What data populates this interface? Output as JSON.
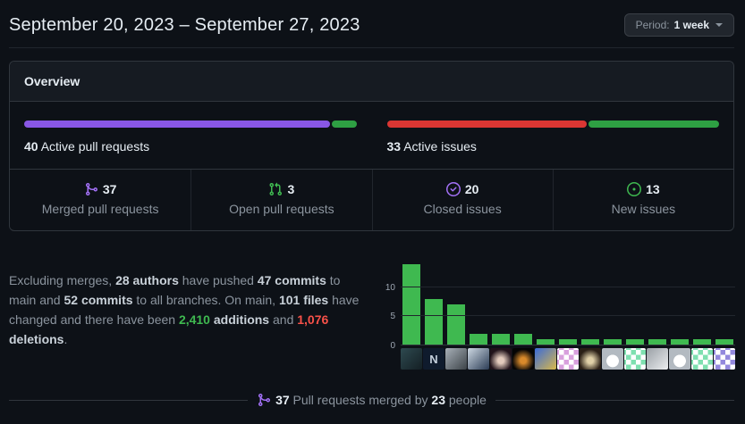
{
  "header": {
    "title": "September 20, 2023 – September 27, 2023",
    "period_label": "Period:",
    "period_value": "1 week"
  },
  "overview": {
    "title": "Overview",
    "pull_requests": {
      "count": "40",
      "label": "Active pull requests",
      "segments": [
        {
          "name": "merged",
          "pct": 92.5,
          "color": "#8957e5"
        },
        {
          "name": "open",
          "pct": 7.5,
          "color": "#2ea043"
        }
      ]
    },
    "issues": {
      "count": "33",
      "label": "Active issues",
      "segments": [
        {
          "name": "closed",
          "pct": 60.6,
          "color": "#da3633"
        },
        {
          "name": "new",
          "pct": 39.4,
          "color": "#2ea043"
        }
      ]
    },
    "stats": [
      {
        "value": "37",
        "label": "Merged pull requests"
      },
      {
        "value": "3",
        "label": "Open pull requests"
      },
      {
        "value": "20",
        "label": "Closed issues"
      },
      {
        "value": "13",
        "label": "New issues"
      }
    ]
  },
  "summary": {
    "s0": "Excluding merges, ",
    "authors": "28 authors",
    "s1": " have pushed ",
    "commits_main": "47 commits",
    "s2": " to main and ",
    "commits_all": "52 commits",
    "s3": " to all branches. On main, ",
    "files": "101 files",
    "s4": " have changed and there have been ",
    "additions_value": "2,410",
    "additions_label": " additions",
    "s5": " and ",
    "deletions_value": "1,076",
    "deletions_label": " deletions",
    "s6": "."
  },
  "chart_data": {
    "type": "bar",
    "values": [
      14,
      8,
      7,
      2,
      2,
      2,
      1,
      1,
      1,
      1,
      1,
      1,
      1,
      1,
      1
    ],
    "categories": [
      "author-1",
      "author-2",
      "author-3",
      "author-4",
      "author-5",
      "author-6",
      "author-7",
      "author-8",
      "author-9",
      "author-10",
      "author-11",
      "author-12",
      "author-13",
      "author-14",
      "author-15"
    ],
    "yticks": [
      0,
      5,
      10
    ],
    "ylim": [
      0,
      15
    ],
    "bar_color": "#3fb950",
    "grid": true,
    "legend": "none",
    "avatars": [
      {
        "type": "gradient",
        "colors": [
          "#2e4a50",
          "#141f24"
        ]
      },
      {
        "type": "letter",
        "colors": [
          "#0f1b2d",
          "#c3cedb"
        ],
        "char": "N"
      },
      {
        "type": "gradient",
        "colors": [
          "#a8b0b8",
          "#3c4348"
        ]
      },
      {
        "type": "gradient",
        "colors": [
          "#cdd8e2",
          "#2b3c55"
        ]
      },
      {
        "type": "radial",
        "colors": [
          "#e3cbbd",
          "#20121a"
        ]
      },
      {
        "type": "radial",
        "colors": [
          "#d98a2b",
          "#050505"
        ]
      },
      {
        "type": "gradient",
        "colors": [
          "#3a6bd9",
          "#d9b84a"
        ]
      },
      {
        "type": "identicon",
        "colors": [
          "#d8a0dd"
        ]
      },
      {
        "type": "radial",
        "colors": [
          "#e0d0a8",
          "#2a1f16"
        ]
      },
      {
        "type": "octocat",
        "colors": [
          "#b3bac1"
        ]
      },
      {
        "type": "identicon",
        "colors": [
          "#7fe0b0"
        ]
      },
      {
        "type": "gradient",
        "colors": [
          "#9aa0a6",
          "#eceef0"
        ]
      },
      {
        "type": "octocat",
        "colors": [
          "#b3bac1"
        ]
      },
      {
        "type": "identicon",
        "colors": [
          "#7fe0b0"
        ]
      },
      {
        "type": "identicon",
        "colors": [
          "#9389dd"
        ]
      }
    ]
  },
  "footer": {
    "count": "37",
    "text": " Pull requests merged by ",
    "people": "23",
    "people_word": " people"
  }
}
